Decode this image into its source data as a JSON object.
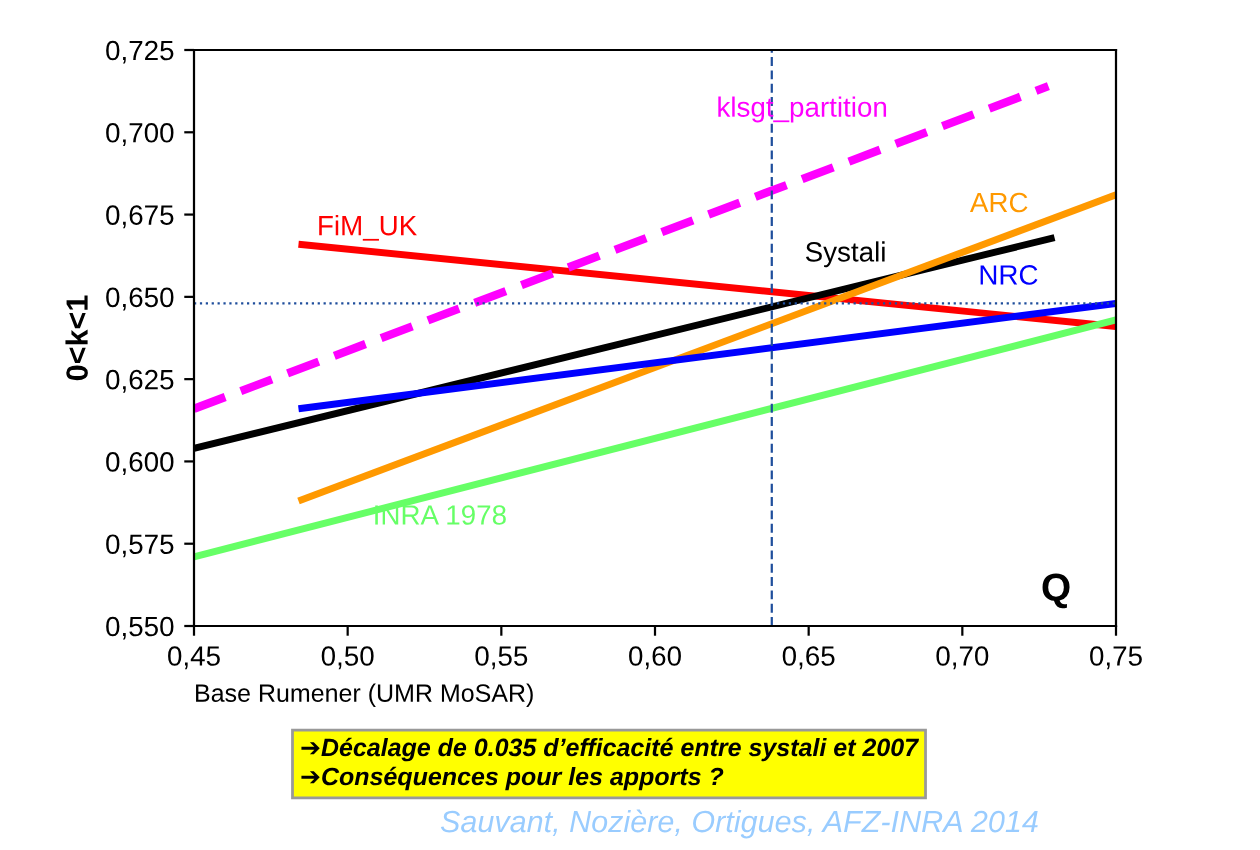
{
  "chart_data": {
    "type": "line",
    "ylabel": "0<k<1",
    "xlabel": "Base Rumener (UMR MoSAR)",
    "xlim": [
      0.45,
      0.75
    ],
    "xticks": [
      {
        "value": 0.45,
        "label": "0,45"
      },
      {
        "value": 0.5,
        "label": "0,50"
      },
      {
        "value": 0.55,
        "label": "0,55"
      },
      {
        "value": 0.6,
        "label": "0,60"
      },
      {
        "value": 0.65,
        "label": "0,65"
      },
      {
        "value": 0.7,
        "label": "0,70"
      },
      {
        "value": 0.75,
        "label": "0,75"
      }
    ],
    "ylim": [
      0.55,
      0.725
    ],
    "yticks": [
      {
        "value": 0.55,
        "label": "0,550"
      },
      {
        "value": 0.575,
        "label": "0,575"
      },
      {
        "value": 0.6,
        "label": "0,600"
      },
      {
        "value": 0.625,
        "label": "0,625"
      },
      {
        "value": 0.65,
        "label": "0,650"
      },
      {
        "value": 0.675,
        "label": "0,675"
      },
      {
        "value": 0.7,
        "label": "0,700"
      },
      {
        "value": 0.725,
        "label": "0,725"
      }
    ],
    "grid": false,
    "legend": false,
    "marker": "none",
    "series": [
      {
        "name": "FiM_UK",
        "color": "#ff0000",
        "x": [
          0.484,
          0.75
        ],
        "values": [
          0.666,
          0.641
        ],
        "line_style": "solid"
      },
      {
        "name": "klsgt_partition",
        "color": "#ff00ff",
        "x": [
          0.45,
          0.728
        ],
        "values": [
          0.616,
          0.714
        ],
        "line_style": "dashed"
      },
      {
        "name": "Systali",
        "color": "#000000",
        "x": [
          0.45,
          0.73
        ],
        "values": [
          0.604,
          0.668
        ],
        "line_style": "solid"
      },
      {
        "name": "ARC",
        "color": "#ff9900",
        "x": [
          0.484,
          0.75
        ],
        "values": [
          0.588,
          0.681
        ],
        "line_style": "solid"
      },
      {
        "name": "NRC",
        "color": "#0000ff",
        "x": [
          0.484,
          0.75
        ],
        "values": [
          0.616,
          0.648
        ],
        "line_style": "solid"
      },
      {
        "name": "INRA 1978",
        "color": "#66ff66",
        "x": [
          0.45,
          0.75
        ],
        "values": [
          0.571,
          0.643
        ],
        "line_style": "solid"
      }
    ],
    "ref_lines": [
      {
        "axis": "y",
        "value": 0.648,
        "color": "#1f4e9c",
        "line_style": "dotted"
      },
      {
        "axis": "x",
        "value": 0.638,
        "color": "#1f4e9c",
        "line_style": "dashed"
      }
    ],
    "annotations": [
      "Q",
      "➔Décalage de 0.035 d’efficacité entre systali et 2007",
      "➔Conséquences pour les apports ?",
      "Sauvant, Nozière, Ortigues, AFZ-INRA 2014"
    ]
  }
}
